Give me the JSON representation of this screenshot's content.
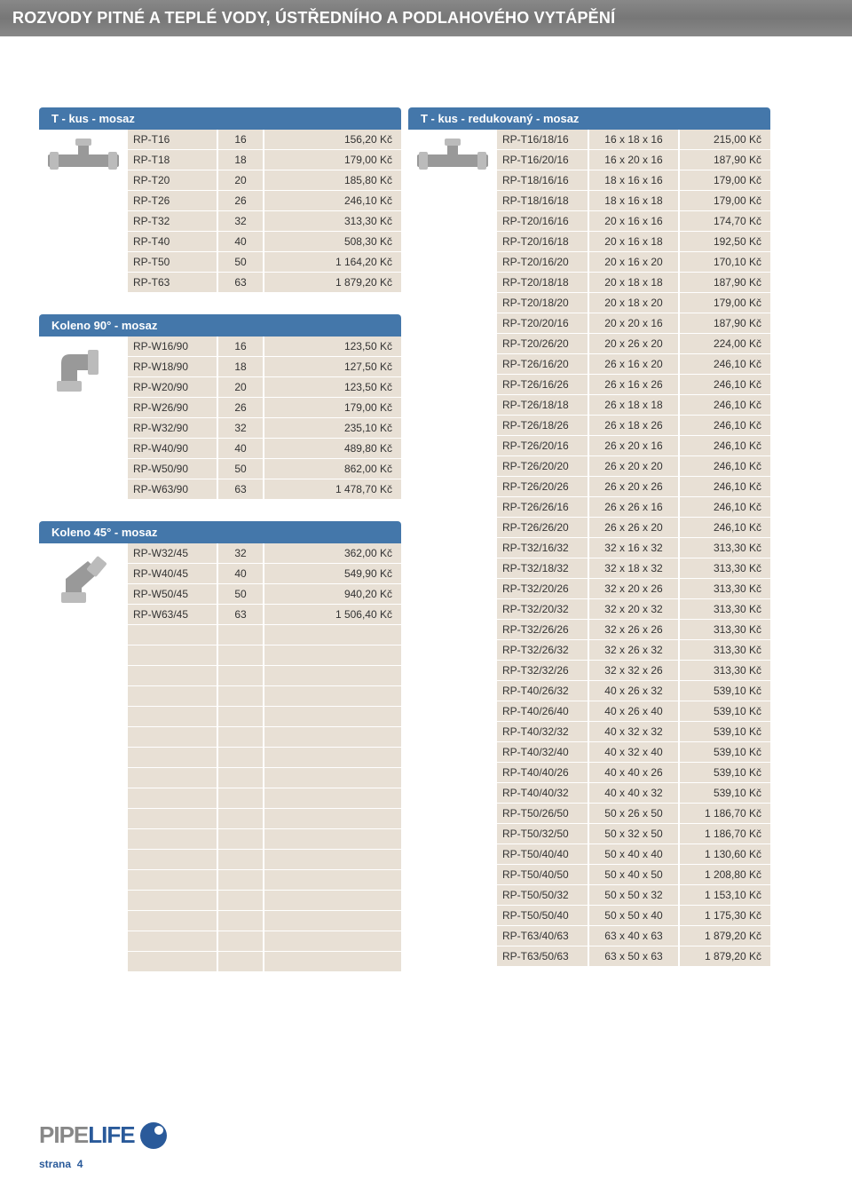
{
  "page": {
    "title": "ROZVODY PITNÉ A TEPLÉ VODY, ÚSTŘEDNÍHO A PODLAHOVÉHO VYTÁPĚNÍ",
    "strana_label": "strana",
    "strana_num": "4",
    "logo": {
      "part1": "PIPE",
      "part2": "LIFE"
    }
  },
  "colors": {
    "header_grad_a": "#888888",
    "header_grad_b": "#777777",
    "section_header": "#4477aa",
    "row_bg": "#e8e0d5",
    "brand_blue": "#2a5a9a",
    "brand_gray": "#888888"
  },
  "left_sections": [
    {
      "header": "T - kus - mosaz",
      "image_key": "t-fitting",
      "rows": [
        {
          "code": "RP-T16",
          "size": "16",
          "price": "156,20 Kč"
        },
        {
          "code": "RP-T18",
          "size": "18",
          "price": "179,00 Kč"
        },
        {
          "code": "RP-T20",
          "size": "20",
          "price": "185,80 Kč"
        },
        {
          "code": "RP-T26",
          "size": "26",
          "price": "246,10 Kč"
        },
        {
          "code": "RP-T32",
          "size": "32",
          "price": "313,30 Kč"
        },
        {
          "code": "RP-T40",
          "size": "40",
          "price": "508,30 Kč"
        },
        {
          "code": "RP-T50",
          "size": "50",
          "price": "1 164,20 Kč"
        },
        {
          "code": "RP-T63",
          "size": "63",
          "price": "1 879,20 Kč"
        }
      ]
    },
    {
      "header": "Koleno 90° - mosaz",
      "image_key": "elbow90",
      "rows": [
        {
          "code": "RP-W16/90",
          "size": "16",
          "price": "123,50 Kč"
        },
        {
          "code": "RP-W18/90",
          "size": "18",
          "price": "127,50 Kč"
        },
        {
          "code": "RP-W20/90",
          "size": "20",
          "price": "123,50 Kč"
        },
        {
          "code": "RP-W26/90",
          "size": "26",
          "price": "179,00 Kč"
        },
        {
          "code": "RP-W32/90",
          "size": "32",
          "price": "235,10 Kč"
        },
        {
          "code": "RP-W40/90",
          "size": "40",
          "price": "489,80 Kč"
        },
        {
          "code": "RP-W50/90",
          "size": "50",
          "price": "862,00 Kč"
        },
        {
          "code": "RP-W63/90",
          "size": "63",
          "price": "1 478,70 Kč"
        }
      ]
    },
    {
      "header": "Koleno 45° - mosaz",
      "image_key": "elbow45",
      "rows": [
        {
          "code": "RP-W32/45",
          "size": "32",
          "price": "362,00 Kč"
        },
        {
          "code": "RP-W40/45",
          "size": "40",
          "price": "549,90 Kč"
        },
        {
          "code": "RP-W50/45",
          "size": "50",
          "price": "940,20 Kč"
        },
        {
          "code": "RP-W63/45",
          "size": "63",
          "price": "1 506,40 Kč"
        }
      ],
      "empty_rows": 17
    }
  ],
  "right_section": {
    "header": "T - kus - redukovaný - mosaz",
    "image_key": "t-reduced",
    "rows": [
      {
        "code": "RP-T16/18/16",
        "size": "16 x 18 x 16",
        "price": "215,00 Kč"
      },
      {
        "code": "RP-T16/20/16",
        "size": "16 x 20 x 16",
        "price": "187,90 Kč"
      },
      {
        "code": "RP-T18/16/16",
        "size": "18 x 16 x 16",
        "price": "179,00 Kč"
      },
      {
        "code": "RP-T18/16/18",
        "size": "18 x 16 x 18",
        "price": "179,00 Kč"
      },
      {
        "code": "RP-T20/16/16",
        "size": "20 x 16 x 16",
        "price": "174,70 Kč"
      },
      {
        "code": "RP-T20/16/18",
        "size": "20 x 16 x 18",
        "price": "192,50 Kč"
      },
      {
        "code": "RP-T20/16/20",
        "size": "20 x 16 x 20",
        "price": "170,10 Kč"
      },
      {
        "code": "RP-T20/18/18",
        "size": "20 x 18 x 18",
        "price": "187,90 Kč"
      },
      {
        "code": "RP-T20/18/20",
        "size": "20 x 18 x 20",
        "price": "179,00 Kč"
      },
      {
        "code": "RP-T20/20/16",
        "size": "20 x 20 x 16",
        "price": "187,90 Kč"
      },
      {
        "code": "RP-T20/26/20",
        "size": "20 x 26 x 20",
        "price": "224,00 Kč"
      },
      {
        "code": "RP-T26/16/20",
        "size": "26 x 16 x 20",
        "price": "246,10 Kč"
      },
      {
        "code": "RP-T26/16/26",
        "size": "26 x 16 x 26",
        "price": "246,10 Kč"
      },
      {
        "code": "RP-T26/18/18",
        "size": "26 x 18 x 18",
        "price": "246,10 Kč"
      },
      {
        "code": "RP-T26/18/26",
        "size": "26 x 18 x 26",
        "price": "246,10 Kč"
      },
      {
        "code": "RP-T26/20/16",
        "size": "26 x 20 x 16",
        "price": "246,10 Kč"
      },
      {
        "code": "RP-T26/20/20",
        "size": "26 x 20 x 20",
        "price": "246,10 Kč"
      },
      {
        "code": "RP-T26/20/26",
        "size": "26 x 20 x 26",
        "price": "246,10 Kč"
      },
      {
        "code": "RP-T26/26/16",
        "size": "26 x 26 x 16",
        "price": "246,10 Kč"
      },
      {
        "code": "RP-T26/26/20",
        "size": "26 x 26 x 20",
        "price": "246,10 Kč"
      },
      {
        "code": "RP-T32/16/32",
        "size": "32 x 16 x 32",
        "price": "313,30 Kč"
      },
      {
        "code": "RP-T32/18/32",
        "size": "32 x 18 x 32",
        "price": "313,30 Kč"
      },
      {
        "code": "RP-T32/20/26",
        "size": "32 x 20 x 26",
        "price": "313,30 Kč"
      },
      {
        "code": "RP-T32/20/32",
        "size": "32 x 20 x 32",
        "price": "313,30 Kč"
      },
      {
        "code": "RP-T32/26/26",
        "size": "32 x 26 x 26",
        "price": "313,30 Kč"
      },
      {
        "code": "RP-T32/26/32",
        "size": "32 x 26 x 32",
        "price": "313,30 Kč"
      },
      {
        "code": "RP-T32/32/26",
        "size": "32 x 32 x 26",
        "price": "313,30 Kč"
      },
      {
        "code": "RP-T40/26/32",
        "size": "40 x 26 x 32",
        "price": "539,10 Kč"
      },
      {
        "code": "RP-T40/26/40",
        "size": "40 x 26 x 40",
        "price": "539,10 Kč"
      },
      {
        "code": "RP-T40/32/32",
        "size": "40 x 32 x 32",
        "price": "539,10 Kč"
      },
      {
        "code": "RP-T40/32/40",
        "size": "40 x 32 x 40",
        "price": "539,10 Kč"
      },
      {
        "code": "RP-T40/40/26",
        "size": "40 x 40 x 26",
        "price": "539,10 Kč"
      },
      {
        "code": "RP-T40/40/32",
        "size": "40 x 40 x 32",
        "price": "539,10 Kč"
      },
      {
        "code": "RP-T50/26/50",
        "size": "50 x 26 x 50",
        "price": "1 186,70 Kč"
      },
      {
        "code": "RP-T50/32/50",
        "size": "50 x 32 x 50",
        "price": "1 186,70 Kč"
      },
      {
        "code": "RP-T50/40/40",
        "size": "50 x 40 x 40",
        "price": "1 130,60 Kč"
      },
      {
        "code": "RP-T50/40/50",
        "size": "50 x 40 x 50",
        "price": "1 208,80 Kč"
      },
      {
        "code": "RP-T50/50/32",
        "size": "50 x 50 x 32",
        "price": "1 153,10 Kč"
      },
      {
        "code": "RP-T50/50/40",
        "size": "50 x 50 x 40",
        "price": "1 175,30 Kč"
      },
      {
        "code": "RP-T63/40/63",
        "size": "63 x 40 x 63",
        "price": "1 879,20 Kč"
      },
      {
        "code": "RP-T63/50/63",
        "size": "63 x 50 x 63",
        "price": "1 879,20 Kč"
      }
    ]
  }
}
